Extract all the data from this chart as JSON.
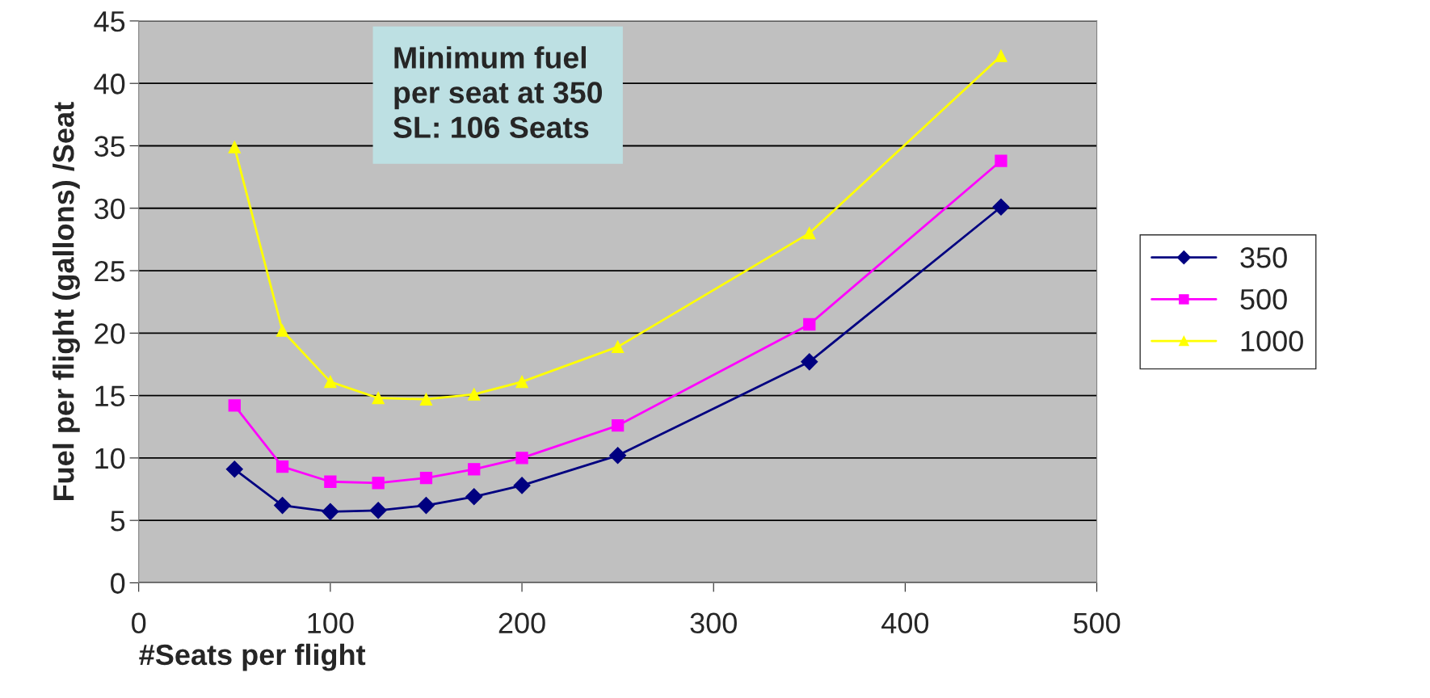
{
  "chart_data": {
    "type": "line",
    "xlabel": "#Seats per flight",
    "ylabel": "Fuel per flight (gallons) /Seat",
    "x": [
      50,
      75,
      100,
      125,
      150,
      175,
      200,
      250,
      350,
      450
    ],
    "series": [
      {
        "name": "350",
        "color": "#000080",
        "marker": "diamond",
        "values": [
          9.1,
          6.2,
          5.7,
          5.8,
          6.2,
          6.9,
          7.8,
          10.2,
          17.7,
          30.1
        ]
      },
      {
        "name": "500",
        "color": "#ff00ff",
        "marker": "square",
        "values": [
          14.2,
          9.3,
          8.1,
          8.0,
          8.4,
          9.1,
          10.0,
          12.6,
          20.7,
          33.8
        ]
      },
      {
        "name": "1000",
        "color": "#ffff00",
        "marker": "triangle",
        "values": [
          34.9,
          20.2,
          16.1,
          14.8,
          14.7,
          15.1,
          16.1,
          18.9,
          28.0,
          42.2
        ]
      }
    ],
    "xlim": [
      0,
      500
    ],
    "xticks": [
      0,
      100,
      200,
      300,
      400,
      500
    ],
    "ylim": [
      0,
      45
    ],
    "yticks": [
      0,
      5,
      10,
      15,
      20,
      25,
      30,
      35,
      40,
      45
    ],
    "grid": "y",
    "legend": "right",
    "annotations": [
      "Minimum fuel\nper seat at 350\nSL: 106 Seats"
    ]
  }
}
